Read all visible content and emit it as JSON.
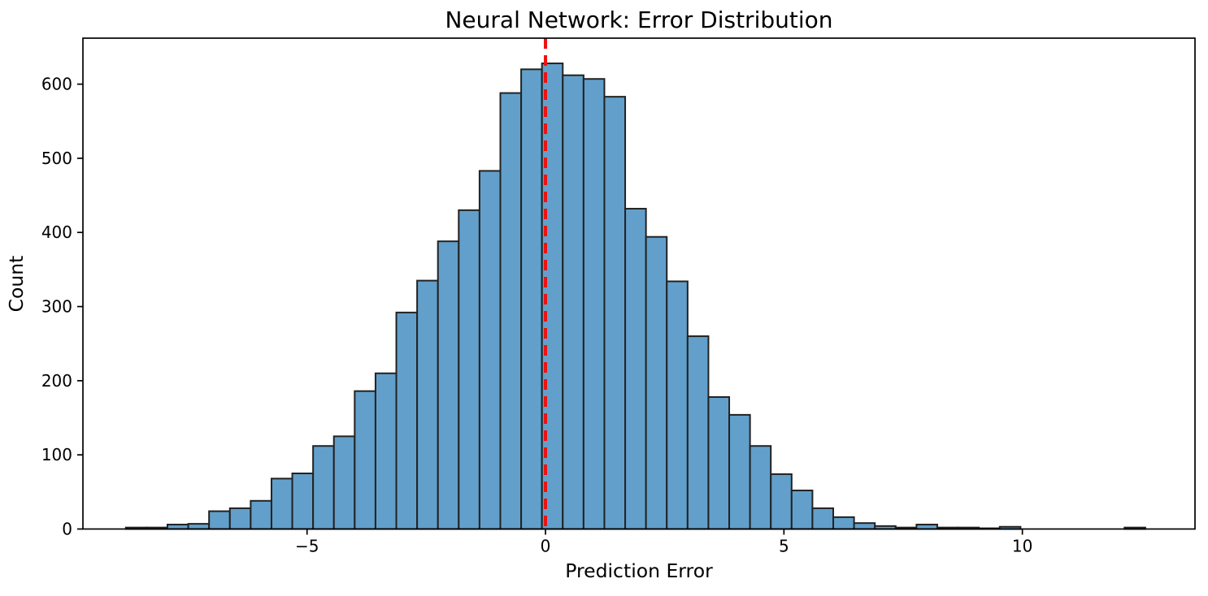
{
  "figure": {
    "background": "#ffffff"
  },
  "chart_data": {
    "type": "bar",
    "subtype": "histogram",
    "title": "Neural Network: Error Distribution",
    "xlabel": "Prediction Error",
    "ylabel": "Count",
    "grid": false,
    "legend": null,
    "xlim": [
      -9.7,
      13.62
    ],
    "ylim": [
      0,
      662
    ],
    "x_ticks": [
      -5,
      0,
      5,
      10
    ],
    "x_tick_labels": [
      "−5",
      "0",
      "5",
      "10"
    ],
    "y_ticks": [
      0,
      100,
      200,
      300,
      400,
      500,
      600
    ],
    "y_tick_labels": [
      "0",
      "100",
      "200",
      "300",
      "400",
      "500",
      "600"
    ],
    "bins": {
      "start": -8.8,
      "width": 0.4363
    },
    "counts": [
      2,
      2,
      6,
      7,
      24,
      28,
      38,
      68,
      75,
      112,
      125,
      186,
      210,
      292,
      335,
      388,
      430,
      483,
      588,
      620,
      628,
      612,
      607,
      583,
      432,
      394,
      334,
      260,
      178,
      154,
      112,
      74,
      52,
      28,
      16,
      8,
      4,
      2,
      6,
      2,
      2,
      1,
      3,
      0,
      0,
      0,
      0,
      0,
      2
    ],
    "reference_line": {
      "x": 0,
      "orientation": "vertical",
      "style": "dashed",
      "color": "#ee1111",
      "width": 4
    },
    "colors": {
      "bar_fill": "#62a0cb",
      "bar_edge": "#222222",
      "axis": "#000000",
      "text": "#000000"
    }
  }
}
